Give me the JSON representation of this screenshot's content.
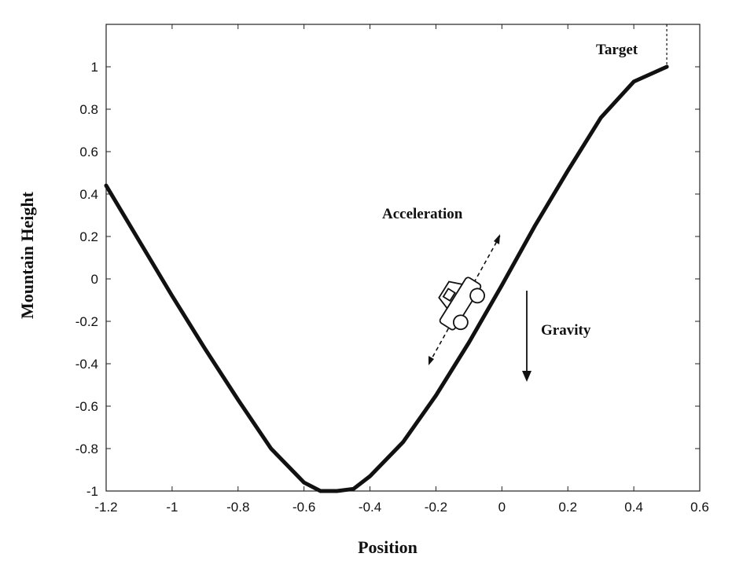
{
  "chart_data": {
    "type": "line",
    "title": "",
    "xlabel": "Position",
    "ylabel": "Mountain Height",
    "xlim": [
      -1.2,
      0.6
    ],
    "ylim": [
      -1,
      1.2
    ],
    "x_ticks": [
      -1.2,
      -1,
      -0.8,
      -0.6,
      -0.4,
      -0.2,
      0,
      0.2,
      0.4,
      0.6
    ],
    "x_tick_labels": [
      "-1.2",
      "-1",
      "-0.8",
      "-0.6",
      "-0.4",
      "-0.2",
      "0",
      "0.2",
      "0.4",
      "0.6"
    ],
    "y_ticks": [
      -1,
      -0.8,
      -0.6,
      -0.4,
      -0.2,
      0,
      0.2,
      0.4,
      0.6,
      0.8,
      1
    ],
    "y_tick_labels": [
      "-1",
      "-0.8",
      "-0.6",
      "-0.4",
      "-0.2",
      "0",
      "0.2",
      "0.4",
      "0.6",
      "0.8",
      "1"
    ],
    "grid": false,
    "legend": "none",
    "series": [
      {
        "x": [
          -1.2,
          -1.1,
          -1.0,
          -0.9,
          -0.8,
          -0.7,
          -0.6,
          -0.55,
          -0.5,
          -0.45,
          -0.4,
          -0.3,
          -0.2,
          -0.1,
          0.0,
          0.1,
          0.2,
          0.3,
          0.4,
          0.5
        ],
        "y": [
          0.44,
          0.18,
          -0.08,
          -0.33,
          -0.57,
          -0.8,
          -0.96,
          -1.0,
          -1.0,
          -0.99,
          -0.93,
          -0.77,
          -0.55,
          -0.3,
          -0.03,
          0.25,
          0.51,
          0.76,
          0.93,
          1.0
        ]
      }
    ],
    "annotations": {
      "target": "Target",
      "acceleration": "Acceleration",
      "gravity": "Gravity"
    },
    "target_x": 0.5
  },
  "colors": {
    "line": "#111111",
    "axis": "#222222",
    "background": "#ffffff"
  },
  "icons": {
    "car": "car-icon"
  }
}
